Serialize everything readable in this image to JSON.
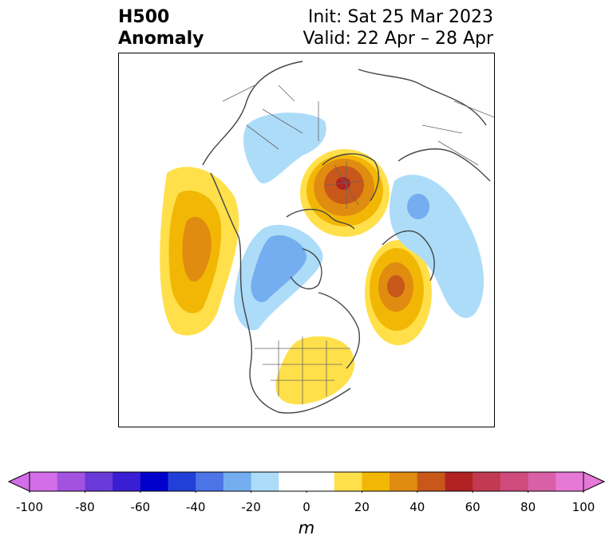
{
  "title": {
    "left_line1": "H500",
    "left_line2": "Anomaly",
    "right_line1": "Init: Sat 25 Mar 2023",
    "right_line2": "Valid: 22 Apr – 28 Apr"
  },
  "colorbar": {
    "unit_label": "m",
    "ticks": [
      "-100",
      "-80",
      "-60",
      "-40",
      "-20",
      "0",
      "20",
      "40",
      "60",
      "80",
      "100"
    ],
    "bins": [
      {
        "from": -100,
        "to": -90,
        "color": "#d36ee8"
      },
      {
        "from": -90,
        "to": -80,
        "color": "#a352e0"
      },
      {
        "from": -80,
        "to": -70,
        "color": "#6a3ad9"
      },
      {
        "from": -70,
        "to": -60,
        "color": "#3a1ed4"
      },
      {
        "from": -60,
        "to": -50,
        "color": "#0000cc"
      },
      {
        "from": -50,
        "to": -40,
        "color": "#2240d8"
      },
      {
        "from": -40,
        "to": -30,
        "color": "#4b74e6"
      },
      {
        "from": -30,
        "to": -20,
        "color": "#74aef0"
      },
      {
        "from": -20,
        "to": -10,
        "color": "#acdcf8"
      },
      {
        "from": -10,
        "to": 10,
        "color": "#ffffff"
      },
      {
        "from": 10,
        "to": 20,
        "color": "#ffe04a"
      },
      {
        "from": 20,
        "to": 30,
        "color": "#f2b705"
      },
      {
        "from": 30,
        "to": 40,
        "color": "#e08c10"
      },
      {
        "from": 40,
        "to": 50,
        "color": "#c8571a"
      },
      {
        "from": 50,
        "to": 60,
        "color": "#b22222"
      },
      {
        "from": 60,
        "to": 70,
        "color": "#c23a52"
      },
      {
        "from": 70,
        "to": 80,
        "color": "#cf4b7c"
      },
      {
        "from": 80,
        "to": 90,
        "color": "#d960a6"
      },
      {
        "from": 90,
        "to": 100,
        "color": "#e678d6"
      }
    ],
    "extend_low_color": "#d36ee8",
    "extend_high_color": "#e678d6"
  },
  "map": {
    "projection": "north-polar-stereographic",
    "features": [
      {
        "name": "positive-anomaly-east-pacific",
        "peak_m": 40
      },
      {
        "name": "positive-anomaly-north-europe",
        "peak_m": 60
      },
      {
        "name": "positive-anomaly-greenland-atlantic",
        "peak_m": 50
      },
      {
        "name": "positive-anomaly-central-us",
        "peak_m": 20
      },
      {
        "name": "negative-anomaly-canada",
        "peak_m": -40
      },
      {
        "name": "negative-anomaly-siberia",
        "peak_m": -40
      },
      {
        "name": "negative-anomaly-central-asia",
        "peak_m": -20
      }
    ]
  }
}
